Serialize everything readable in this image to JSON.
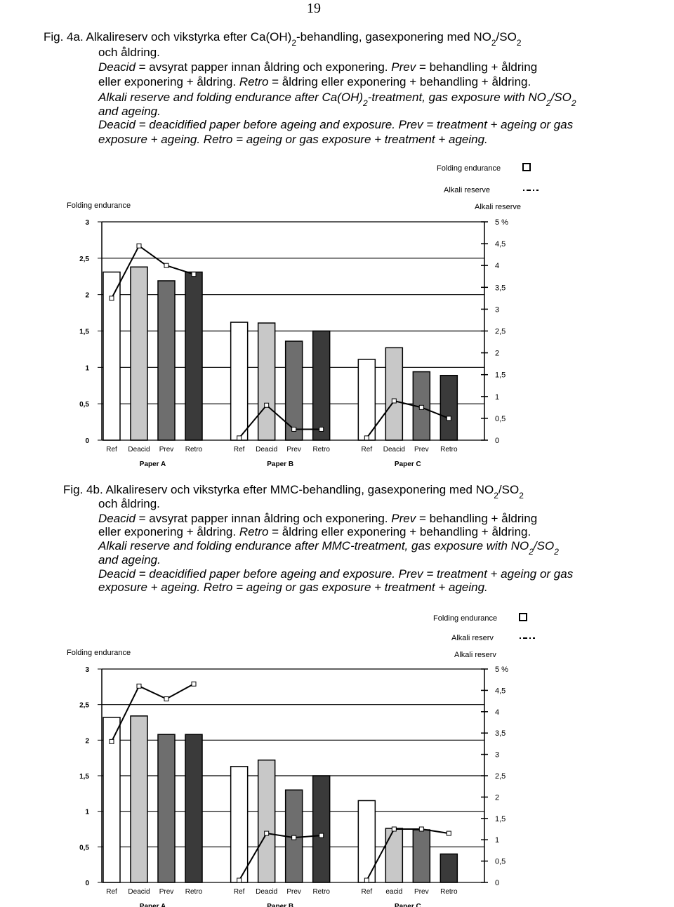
{
  "page_number": "19",
  "chart_data": [
    {
      "type": "bar",
      "caption": [
        {
          "italic": false,
          "parts": [
            "Fig. 4a. Alkalireserv och vikstyrka efter Ca(OH)",
            {
              "sub": "2"
            },
            "-behandling, gasexponering med NO",
            {
              "sub": "2"
            },
            "/SO",
            {
              "sub": "2"
            }
          ]
        },
        {
          "italic": false,
          "parts": [
            "och åldring."
          ]
        },
        {
          "italic": false,
          "parts": [
            {
              "i": "Deacid"
            },
            " = avsyrat papper innan åldring och exponering. ",
            {
              "i": "Prev"
            },
            " = behandling + åldring"
          ]
        },
        {
          "italic": false,
          "parts": [
            "eller exponering + åldring. ",
            {
              "i": "Retro"
            },
            " = åldring eller exponering + behandling + åldring."
          ]
        },
        {
          "italic": true,
          "parts": [
            "Alkali reserve and folding endurance after Ca(OH)",
            {
              "sub": "2"
            },
            "-treatment, gas exposure with NO",
            {
              "sub": "2"
            },
            "/SO",
            {
              "sub": "2"
            }
          ]
        },
        {
          "italic": true,
          "parts": [
            "and ageing."
          ]
        },
        {
          "italic": true,
          "parts": [
            "Deacid = deacidified paper before ageing and exposure. Prev = treatment + ageing or gas"
          ]
        },
        {
          "italic": true,
          "parts": [
            "exposure + ageing. Retro = ageing or gas exposure + treatment + ageing."
          ]
        }
      ],
      "y_label": "Folding endurance",
      "y2_label": "Alkali reserve",
      "categories": [
        "Ref",
        "Deacid",
        "Prev",
        "Retro",
        "Ref",
        "Deacid",
        "Prev",
        "Retro",
        "Ref",
        "Deacid",
        "Prev",
        "Retro"
      ],
      "groups": [
        "Paper A",
        "Paper B",
        "Paper C"
      ],
      "series": [
        {
          "name": "Folding endurance",
          "values": [
            2.31,
            2.38,
            2.19,
            2.31,
            1.62,
            1.61,
            1.36,
            1.5,
            1.11,
            1.27,
            0.94,
            0.89
          ],
          "colors": [
            "#ffffff",
            "#c8c8c8",
            "#6e6e6e",
            "#3a3a3a",
            "#ffffff",
            "#c8c8c8",
            "#6e6e6e",
            "#3a3a3a",
            "#ffffff",
            "#c8c8c8",
            "#6e6e6e",
            "#3a3a3a"
          ]
        },
        {
          "name": "Alkali reserve",
          "axis": "y2",
          "color": "#000000",
          "values": [
            3.25,
            4.45,
            4.0,
            3.8,
            0.05,
            0.8,
            0.25,
            0.25,
            0.05,
            0.9,
            0.75,
            0.5
          ]
        }
      ],
      "ylim": [
        0,
        3
      ],
      "yticks": [
        0,
        {
          "value": 0.5,
          "label": "0,5"
        },
        1,
        {
          "value": 1.5,
          "label": "1,5"
        },
        2,
        {
          "value": 2.5,
          "label": "2,5"
        },
        3
      ],
      "y2lim": [
        0,
        5
      ],
      "y2ticks": [
        0,
        {
          "value": 0.5,
          "label": "0,5"
        },
        1,
        {
          "value": 1.5,
          "label": "1,5"
        },
        2,
        {
          "value": 2.5,
          "label": "2,5"
        },
        3,
        {
          "value": 3.5,
          "label": "3,5"
        },
        4,
        {
          "value": 4.5,
          "label": "4,5"
        },
        {
          "value": 5,
          "label": "5 %"
        }
      ],
      "grid": true
    },
    {
      "type": "bar",
      "caption": [
        {
          "italic": false,
          "parts": [
            "Fig. 4b. Alkalireserv och vikstyrka efter MMC-behandling, gasexponering med NO",
            {
              "sub": "2"
            },
            "/SO",
            {
              "sub": "2"
            }
          ]
        },
        {
          "italic": false,
          "parts": [
            "och åldring."
          ]
        },
        {
          "italic": false,
          "parts": [
            {
              "i": "Deacid"
            },
            " = avsyrat papper innan åldring och exponering. ",
            {
              "i": "Prev"
            },
            " = behandling + åldring"
          ]
        },
        {
          "italic": false,
          "parts": [
            "eller exponering + åldring. ",
            {
              "i": "Retro"
            },
            " = åldring eller exponering + behandling + åldring."
          ]
        },
        {
          "italic": true,
          "parts": [
            "Alkali reserve and folding endurance after MMC-treatment, gas exposure with NO",
            {
              "sub": "2"
            },
            "/SO",
            {
              "sub": "2"
            }
          ]
        },
        {
          "italic": true,
          "parts": [
            "and ageing."
          ]
        },
        {
          "italic": true,
          "parts": [
            "Deacid = deacidified paper before ageing and exposure. Prev = treatment + ageing or gas"
          ]
        },
        {
          "italic": true,
          "parts": [
            "exposure + ageing. Retro = ageing or gas exposure + treatment + ageing."
          ]
        }
      ],
      "y_label": "Folding endurance",
      "y2_label": "Alkali reserv",
      "categories": [
        "Ref",
        "Deacid",
        "Prev",
        "Retro",
        "Ref",
        "Deacid",
        "Prev",
        "Retro",
        "Ref",
        "eacid",
        "Prev",
        "Retro"
      ],
      "groups": [
        "Paper A",
        "Paper B",
        "Paper C"
      ],
      "series": [
        {
          "name": "Folding endurance",
          "values": [
            2.32,
            2.34,
            2.08,
            2.08,
            1.63,
            1.72,
            1.3,
            1.5,
            1.15,
            0.76,
            0.74,
            0.4
          ],
          "colors": [
            "#ffffff",
            "#c8c8c8",
            "#6e6e6e",
            "#3a3a3a",
            "#ffffff",
            "#c8c8c8",
            "#6e6e6e",
            "#3a3a3a",
            "#ffffff",
            "#c8c8c8",
            "#6e6e6e",
            "#3a3a3a"
          ]
        },
        {
          "name": "Alkali reserv",
          "axis": "y2",
          "color": "#000000",
          "values": [
            3.3,
            4.6,
            4.3,
            4.65,
            0.05,
            1.15,
            1.05,
            1.1,
            0.05,
            1.25,
            1.25,
            1.15
          ]
        }
      ],
      "ylim": [
        0,
        3
      ],
      "yticks": [
        0,
        {
          "value": 0.5,
          "label": "0,5"
        },
        1,
        {
          "value": 1.5,
          "label": "1,5"
        },
        2,
        {
          "value": 2.5,
          "label": "2,5"
        },
        3
      ],
      "y2lim": [
        0,
        5
      ],
      "y2ticks": [
        0,
        {
          "value": 0.5,
          "label": "0,5"
        },
        1,
        {
          "value": 1.5,
          "label": "1,5"
        },
        2,
        {
          "value": 2.5,
          "label": "2,5"
        },
        3,
        {
          "value": 3.5,
          "label": "3,5"
        },
        4,
        {
          "value": 4.5,
          "label": "4,5"
        },
        {
          "value": 5,
          "label": "5 %"
        }
      ],
      "grid": true
    }
  ]
}
